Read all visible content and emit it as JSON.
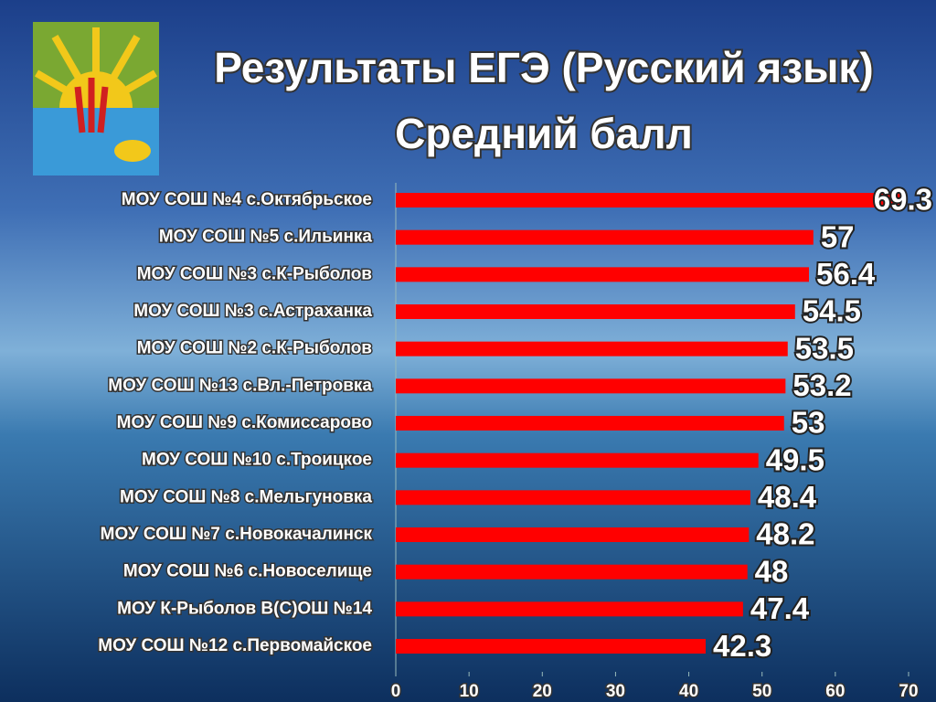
{
  "chart_data": {
    "type": "bar",
    "orientation": "horizontal",
    "title": "Результаты ЕГЭ (Русский язык)",
    "subtitle": "Средний балл",
    "categories": [
      "МОУ СОШ №4 с.Октябрьское",
      "МОУ СОШ №5 с.Ильинка",
      "МОУ СОШ №3 с.К-Рыболов",
      "МОУ СОШ №3 с.Астраханка",
      "МОУ СОШ №2 с.К-Рыболов",
      "МОУ СОШ №13 с.Вл.-Петровка",
      "МОУ СОШ №9 с.Комиссарово",
      "МОУ СОШ №10 с.Троицкое",
      "МОУ СОШ №8 с.Мельгуновка",
      "МОУ СОШ №7 с.Новокачалинск",
      "МОУ СОШ №6 с.Новоселище",
      "МОУ К-Рыболов В(С)ОШ №14",
      "МОУ СОШ №12 с.Первомайское"
    ],
    "values": [
      69.3,
      57,
      56.4,
      54.5,
      53.5,
      53.2,
      53,
      49.5,
      48.4,
      48.2,
      48,
      47.4,
      42.3
    ],
    "color": "#ff0000",
    "xlim": [
      0,
      70
    ],
    "xticks": [
      0,
      10,
      20,
      30,
      40,
      50,
      60,
      70
    ],
    "grid": false
  }
}
